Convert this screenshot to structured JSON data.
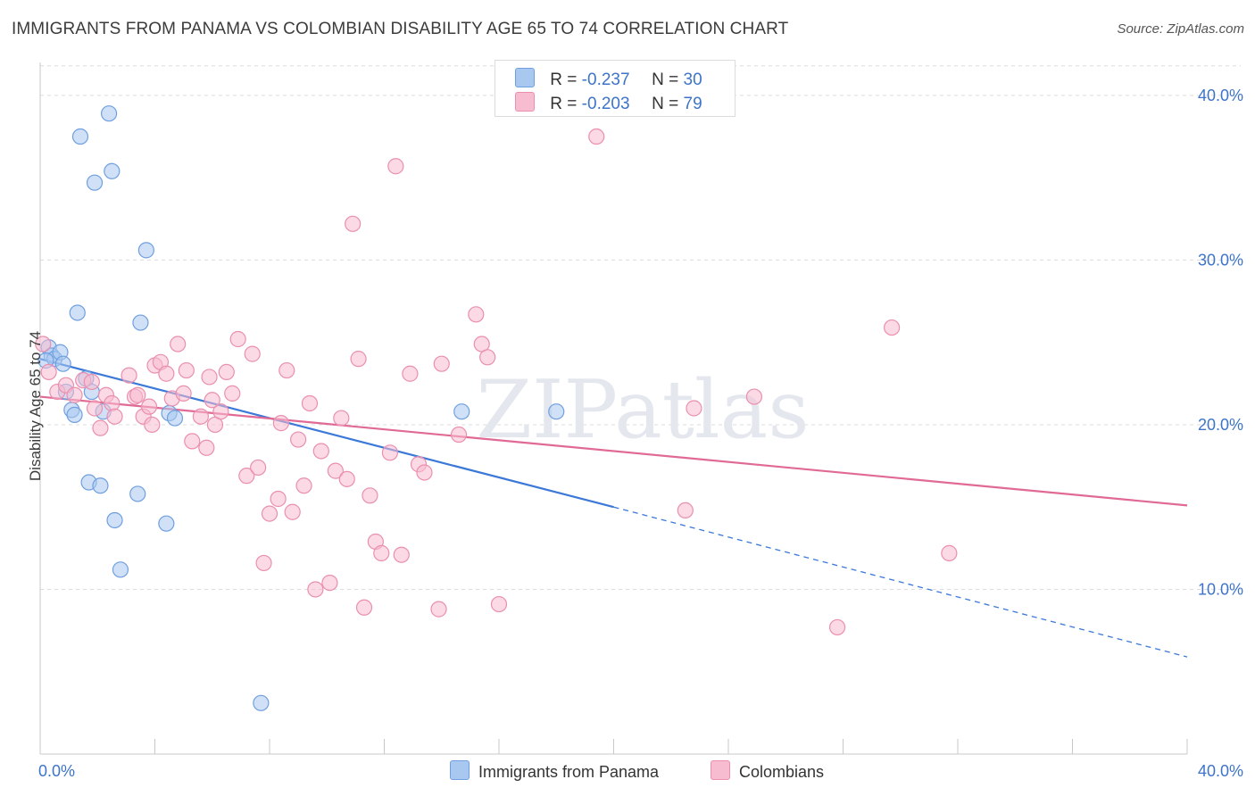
{
  "title": "IMMIGRANTS FROM PANAMA VS COLOMBIAN DISABILITY AGE 65 TO 74 CORRELATION CHART",
  "source": "Source: ZipAtlas.com",
  "watermark": "ZIPatlas",
  "legend": {
    "rows": [
      {
        "r_label": "R =",
        "r_value": "-0.237",
        "n_label": "N =",
        "n_value": "30",
        "color": "#a9c8f0",
        "border": "#6f9fe0"
      },
      {
        "r_label": "R =",
        "r_value": "-0.203",
        "n_label": "N =",
        "n_value": "79",
        "color": "#f7bccf",
        "border": "#ea8fae"
      }
    ]
  },
  "bottom_legend": [
    {
      "label": "Immigrants from Panama",
      "color": "#a9c8f0",
      "border": "#6f9fe0"
    },
    {
      "label": "Colombians",
      "color": "#f7bccf",
      "border": "#ea8fae"
    }
  ],
  "chart_data": {
    "type": "scatter",
    "xlabel": "",
    "ylabel": "Disability Age 65 to 74",
    "xlim": [
      0,
      40
    ],
    "ylim": [
      0,
      42
    ],
    "x_tick_labels": [
      "0.0%",
      "40.0%"
    ],
    "y_ticks": [
      10,
      20,
      30,
      40
    ],
    "y_tick_labels": [
      "10.0%",
      "20.0%",
      "30.0%",
      "40.0%"
    ],
    "grid": true,
    "series": [
      {
        "name": "Immigrants from Panama",
        "color": "#6f9fe0",
        "fill": "#a9c8f0",
        "points": [
          [
            0.3,
            24.7
          ],
          [
            0.4,
            24.2
          ],
          [
            0.5,
            24.0
          ],
          [
            0.7,
            24.4
          ],
          [
            0.8,
            23.7
          ],
          [
            0.9,
            22.0
          ],
          [
            1.1,
            20.9
          ],
          [
            1.2,
            20.6
          ],
          [
            1.3,
            26.8
          ],
          [
            1.4,
            37.5
          ],
          [
            1.6,
            22.8
          ],
          [
            1.7,
            16.5
          ],
          [
            1.8,
            22.0
          ],
          [
            1.9,
            34.7
          ],
          [
            2.1,
            16.3
          ],
          [
            2.2,
            20.8
          ],
          [
            2.4,
            38.9
          ],
          [
            2.5,
            35.4
          ],
          [
            2.6,
            14.2
          ],
          [
            2.8,
            11.2
          ],
          [
            3.4,
            15.8
          ],
          [
            3.5,
            26.2
          ],
          [
            3.7,
            30.6
          ],
          [
            4.4,
            14.0
          ],
          [
            4.5,
            20.7
          ],
          [
            4.7,
            20.4
          ],
          [
            7.7,
            3.1
          ],
          [
            14.7,
            20.8
          ],
          [
            18.0,
            20.8
          ],
          [
            0.2,
            23.9
          ]
        ],
        "trend": {
          "x0": 0,
          "y0": 24.0,
          "x1": 20,
          "y1": 15.0,
          "dash_x1": 40,
          "dash_y1": 5.9
        }
      },
      {
        "name": "Colombians",
        "color": "#ea8fae",
        "fill": "#f7bccf",
        "points": [
          [
            0.1,
            24.9
          ],
          [
            0.3,
            23.2
          ],
          [
            0.6,
            22.0
          ],
          [
            0.9,
            22.4
          ],
          [
            1.2,
            21.8
          ],
          [
            1.5,
            22.7
          ],
          [
            1.8,
            22.6
          ],
          [
            1.9,
            21.0
          ],
          [
            2.1,
            19.8
          ],
          [
            2.3,
            21.8
          ],
          [
            2.5,
            21.3
          ],
          [
            2.6,
            20.5
          ],
          [
            3.1,
            23.0
          ],
          [
            3.3,
            21.7
          ],
          [
            3.4,
            21.8
          ],
          [
            3.6,
            20.5
          ],
          [
            3.9,
            20.0
          ],
          [
            4.0,
            23.6
          ],
          [
            4.2,
            23.8
          ],
          [
            4.4,
            23.1
          ],
          [
            4.6,
            21.6
          ],
          [
            4.8,
            24.9
          ],
          [
            5.0,
            21.9
          ],
          [
            5.1,
            23.3
          ],
          [
            5.3,
            19.0
          ],
          [
            5.6,
            20.5
          ],
          [
            5.8,
            18.6
          ],
          [
            5.9,
            22.9
          ],
          [
            6.1,
            20.0
          ],
          [
            6.3,
            20.8
          ],
          [
            6.5,
            23.2
          ],
          [
            6.7,
            21.9
          ],
          [
            6.9,
            25.2
          ],
          [
            7.2,
            16.9
          ],
          [
            7.4,
            24.3
          ],
          [
            7.6,
            17.4
          ],
          [
            7.8,
            11.6
          ],
          [
            8.0,
            14.6
          ],
          [
            8.3,
            15.5
          ],
          [
            8.4,
            20.1
          ],
          [
            8.6,
            23.3
          ],
          [
            9.0,
            19.1
          ],
          [
            9.2,
            16.3
          ],
          [
            9.4,
            21.3
          ],
          [
            9.6,
            10.0
          ],
          [
            9.8,
            18.4
          ],
          [
            10.1,
            10.4
          ],
          [
            10.3,
            17.2
          ],
          [
            10.5,
            20.4
          ],
          [
            10.7,
            16.7
          ],
          [
            10.9,
            32.2
          ],
          [
            11.1,
            24.0
          ],
          [
            11.3,
            8.9
          ],
          [
            11.5,
            15.7
          ],
          [
            11.7,
            12.9
          ],
          [
            11.9,
            12.2
          ],
          [
            12.2,
            18.3
          ],
          [
            12.4,
            35.7
          ],
          [
            12.6,
            12.1
          ],
          [
            12.9,
            23.1
          ],
          [
            13.2,
            17.6
          ],
          [
            13.4,
            17.1
          ],
          [
            13.9,
            8.8
          ],
          [
            14.0,
            23.7
          ],
          [
            14.6,
            19.4
          ],
          [
            15.2,
            26.7
          ],
          [
            15.4,
            24.9
          ],
          [
            15.6,
            24.1
          ],
          [
            16.0,
            9.1
          ],
          [
            19.4,
            37.5
          ],
          [
            22.5,
            14.8
          ],
          [
            22.8,
            21.0
          ],
          [
            24.9,
            21.7
          ],
          [
            27.8,
            7.7
          ],
          [
            29.7,
            25.9
          ],
          [
            31.7,
            12.2
          ],
          [
            8.8,
            14.7
          ],
          [
            6.0,
            21.5
          ],
          [
            3.8,
            21.1
          ]
        ],
        "trend": {
          "x0": 0,
          "y0": 21.7,
          "x1": 40,
          "y1": 15.1
        }
      }
    ]
  }
}
